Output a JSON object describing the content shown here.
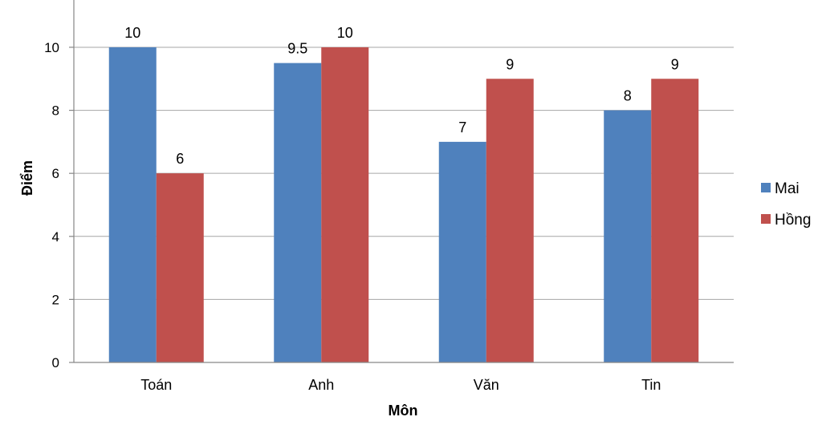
{
  "chart_data": {
    "type": "bar",
    "categories": [
      "Toán",
      "Anh",
      "Văn",
      "Tin"
    ],
    "series": [
      {
        "name": "Mai",
        "values": [
          10,
          9.5,
          7,
          8
        ],
        "color": "#4f81bd"
      },
      {
        "name": "Hồng",
        "values": [
          6,
          10,
          9,
          9
        ],
        "color": "#c0504d"
      }
    ],
    "data_labels": [
      [
        "10",
        "9.5",
        "7",
        "8"
      ],
      [
        "6",
        "10",
        "9",
        "9"
      ]
    ],
    "xlabel": "Môn",
    "ylabel": "Điểm",
    "ylim": [
      0,
      11.5
    ],
    "yticks": [
      0,
      2,
      4,
      6,
      8,
      10
    ],
    "grid": true,
    "legend_position": "right"
  }
}
